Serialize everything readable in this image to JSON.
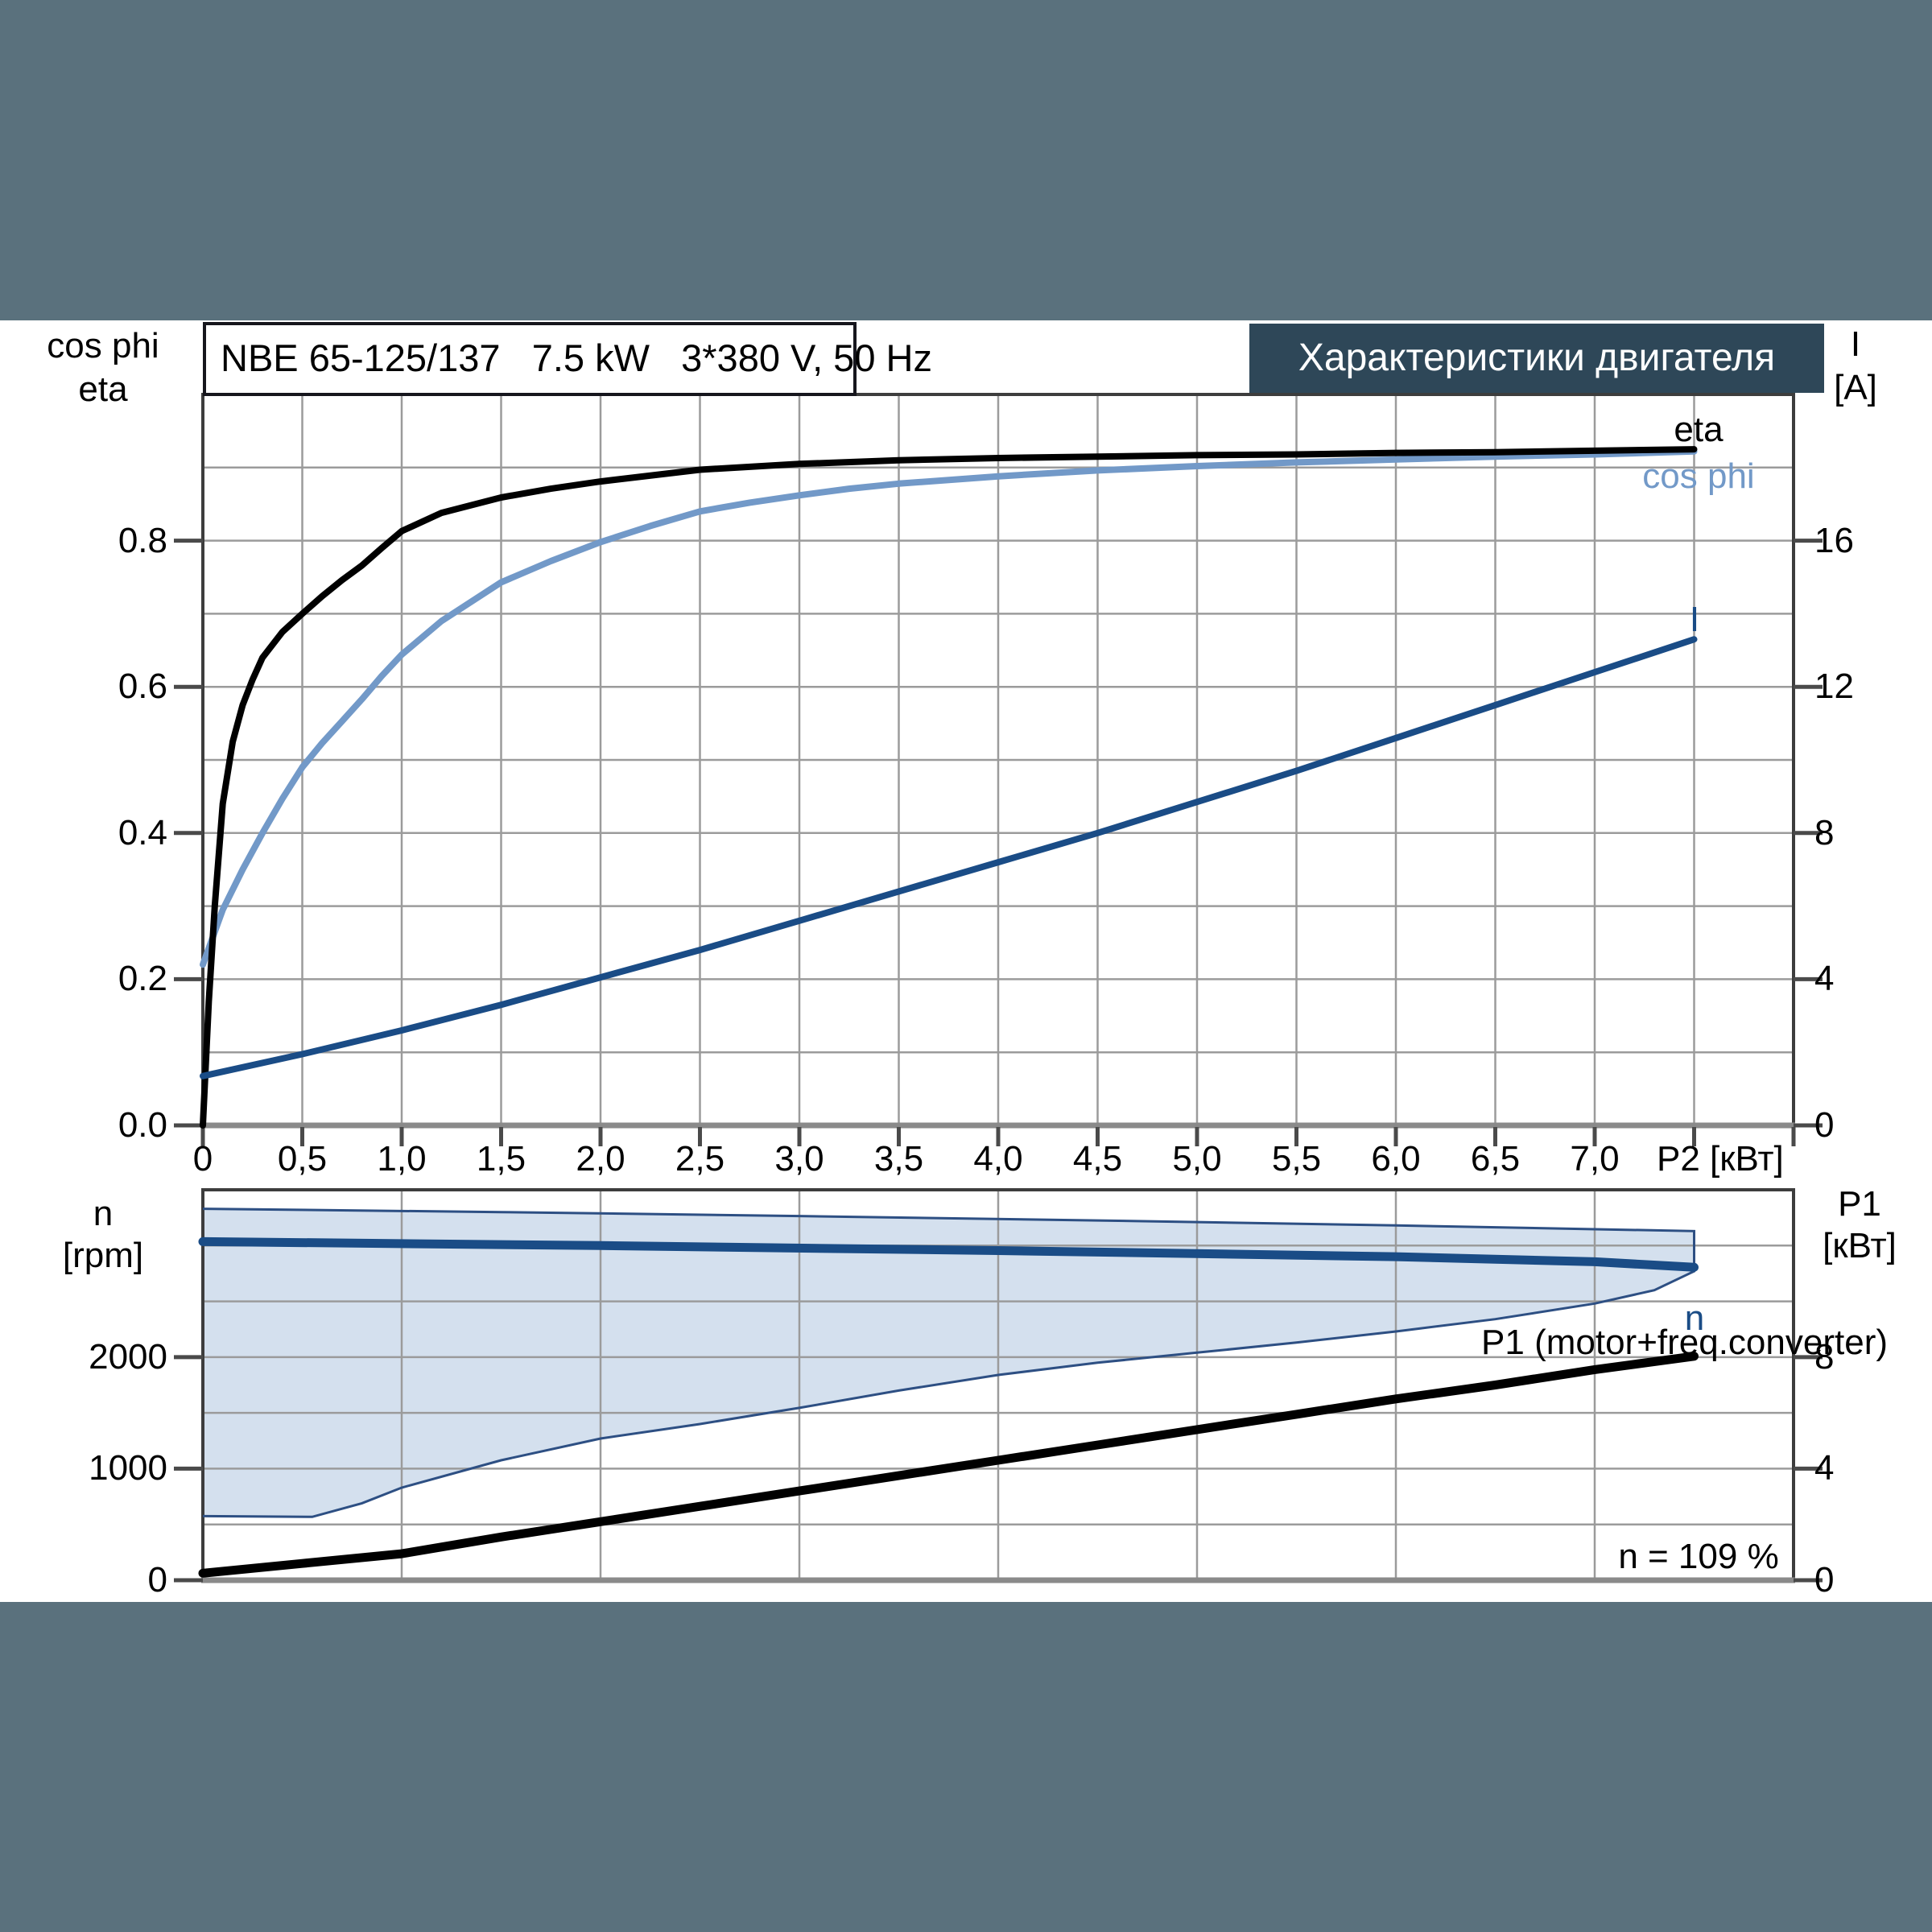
{
  "page": {
    "background": "#5a717d",
    "panel_background": "#ffffff",
    "grid_color": "#9b9b9b",
    "border_color": "#3d3d3d",
    "baseline_color": "#8a8a8a"
  },
  "top_chart": {
    "title": "NBE 65-125/137   7.5 kW   3*380 V, 50 Hz",
    "banner": "Характеристики двигателя",
    "banner_bg": "#2e4758",
    "axis_left_line1": "cos phi",
    "axis_left_line2": "eta",
    "axis_right_line1": "I",
    "axis_right_line2": "[A]",
    "x_axis_label": "P2 [кВт]",
    "eta_curve_label": "eta",
    "cos_phi_curve_label": "cos phi",
    "current_curve_label": "I"
  },
  "bottom_chart": {
    "axis_left_line1": "n",
    "axis_left_line2": "[rpm]",
    "axis_right_line1": "P1",
    "axis_right_line2": "[кВт]",
    "n_curve_label": "n",
    "p1_curve_label": "P1 (motor+freq.converter)",
    "annotation": "n = 109 %"
  },
  "chart_data": [
    {
      "id": "motor-efficiency-chart",
      "type": "line",
      "title": "NBE 65-125/137 7.5 kW 3*380 V, 50 Hz",
      "xlabel": "P2 [кВт]",
      "x_range": [
        0,
        8
      ],
      "x_grid_step": 0.5,
      "x_ticks": [
        {
          "v": 0,
          "label": "0"
        },
        {
          "v": 0.5,
          "label": "0,5"
        },
        {
          "v": 1,
          "label": "1,0"
        },
        {
          "v": 1.5,
          "label": "1,5"
        },
        {
          "v": 2,
          "label": "2,0"
        },
        {
          "v": 2.5,
          "label": "2,5"
        },
        {
          "v": 3,
          "label": "3,0"
        },
        {
          "v": 3.5,
          "label": "3,5"
        },
        {
          "v": 4,
          "label": "4,0"
        },
        {
          "v": 4.5,
          "label": "4,5"
        },
        {
          "v": 5,
          "label": "5,0"
        },
        {
          "v": 5.5,
          "label": "5,5"
        },
        {
          "v": 6,
          "label": "6,0"
        },
        {
          "v": 6.5,
          "label": "6,5"
        },
        {
          "v": 7,
          "label": "7,0"
        }
      ],
      "y_left": {
        "label": "cos phi / eta",
        "range": [
          0,
          1.0
        ],
        "grid_step": 0.1,
        "ticks": [
          {
            "v": 0,
            "label": "0.0"
          },
          {
            "v": 0.2,
            "label": "0.2"
          },
          {
            "v": 0.4,
            "label": "0.4"
          },
          {
            "v": 0.6,
            "label": "0.6"
          },
          {
            "v": 0.8,
            "label": "0.8"
          }
        ]
      },
      "y_right": {
        "label": "I [A]",
        "range": [
          0,
          20
        ],
        "ticks": [
          {
            "v": 0,
            "label": "0"
          },
          {
            "v": 4,
            "label": "4"
          },
          {
            "v": 8,
            "label": "8"
          },
          {
            "v": 12,
            "label": "12"
          },
          {
            "v": 16,
            "label": "16"
          }
        ]
      },
      "series": [
        {
          "name": "cos phi",
          "axis": "left",
          "color": "#7299c8",
          "width": 8,
          "points": [
            [
              0,
              0.22
            ],
            [
              0.1,
              0.295
            ],
            [
              0.2,
              0.35
            ],
            [
              0.3,
              0.4
            ],
            [
              0.4,
              0.447
            ],
            [
              0.5,
              0.49
            ],
            [
              0.6,
              0.523
            ],
            [
              0.7,
              0.553
            ],
            [
              0.8,
              0.583
            ],
            [
              0.9,
              0.615
            ],
            [
              1.0,
              0.644
            ],
            [
              1.2,
              0.69
            ],
            [
              1.5,
              0.743
            ],
            [
              1.75,
              0.772
            ],
            [
              2.0,
              0.798
            ],
            [
              2.25,
              0.82
            ],
            [
              2.5,
              0.84
            ],
            [
              2.75,
              0.852
            ],
            [
              3.0,
              0.862
            ],
            [
              3.25,
              0.871
            ],
            [
              3.5,
              0.878
            ],
            [
              4.0,
              0.888
            ],
            [
              4.5,
              0.896
            ],
            [
              5.0,
              0.902
            ],
            [
              5.5,
              0.907
            ],
            [
              6.0,
              0.911
            ],
            [
              6.5,
              0.915
            ],
            [
              7.0,
              0.918
            ],
            [
              7.5,
              0.922
            ]
          ]
        },
        {
          "name": "eta",
          "axis": "left",
          "color": "#000000",
          "width": 8,
          "points": [
            [
              0,
              0
            ],
            [
              0.03,
              0.17
            ],
            [
              0.06,
              0.3
            ],
            [
              0.1,
              0.44
            ],
            [
              0.15,
              0.525
            ],
            [
              0.2,
              0.575
            ],
            [
              0.25,
              0.61
            ],
            [
              0.3,
              0.64
            ],
            [
              0.4,
              0.675
            ],
            [
              0.5,
              0.7
            ],
            [
              0.6,
              0.724
            ],
            [
              0.7,
              0.746
            ],
            [
              0.8,
              0.766
            ],
            [
              0.9,
              0.79
            ],
            [
              1.0,
              0.813
            ],
            [
              1.2,
              0.838
            ],
            [
              1.5,
              0.859
            ],
            [
              1.75,
              0.871
            ],
            [
              2.0,
              0.881
            ],
            [
              2.5,
              0.897
            ],
            [
              3.0,
              0.905
            ],
            [
              3.5,
              0.91
            ],
            [
              4.0,
              0.913
            ],
            [
              4.5,
              0.915
            ],
            [
              5.0,
              0.917
            ],
            [
              5.5,
              0.918
            ],
            [
              6.0,
              0.92
            ],
            [
              6.5,
              0.921
            ],
            [
              7.0,
              0.923
            ],
            [
              7.5,
              0.925
            ]
          ]
        },
        {
          "name": "I",
          "axis": "right",
          "color": "#1a4c86",
          "width": 8,
          "points": [
            [
              0,
              1.35
            ],
            [
              0.5,
              1.95
            ],
            [
              1,
              2.6
            ],
            [
              1.5,
              3.3
            ],
            [
              2,
              4.05
            ],
            [
              2.5,
              4.8
            ],
            [
              3,
              5.6
            ],
            [
              3.5,
              6.4
            ],
            [
              4,
              7.2
            ],
            [
              4.5,
              8.0
            ],
            [
              5,
              8.85
            ],
            [
              5.5,
              9.7
            ],
            [
              6,
              10.6
            ],
            [
              6.5,
              11.5
            ],
            [
              7,
              12.4
            ],
            [
              7.5,
              13.3
            ]
          ]
        }
      ]
    },
    {
      "id": "speed-power-chart",
      "type": "line",
      "xlabel": "P2 [кВт]",
      "x_range": [
        0,
        8
      ],
      "x_grid_step": 1,
      "x_ticks": [],
      "y_left": {
        "label": "n [rpm]",
        "range": [
          0,
          3500
        ],
        "grid_step": 500,
        "ticks": [
          {
            "v": 0,
            "label": "0"
          },
          {
            "v": 1000,
            "label": "1000"
          },
          {
            "v": 2000,
            "label": "2000"
          }
        ]
      },
      "y_right": {
        "label": "P1 [кВт]",
        "range": [
          0,
          14
        ],
        "ticks": [
          {
            "v": 0,
            "label": "0"
          },
          {
            "v": 4,
            "label": "4"
          },
          {
            "v": 8,
            "label": "8"
          }
        ]
      },
      "envelope": {
        "name": "speed operating range",
        "fill": "#d4e0ee",
        "stroke": "#2d4f83",
        "upper": [
          [
            0,
            3330
          ],
          [
            1.5,
            3300
          ],
          [
            3,
            3265
          ],
          [
            4.5,
            3225
          ],
          [
            6,
            3180
          ],
          [
            7.5,
            3130
          ]
        ],
        "lower": [
          [
            0,
            575
          ],
          [
            0.55,
            568
          ],
          [
            0.8,
            690
          ],
          [
            1,
            830
          ],
          [
            1.5,
            1075
          ],
          [
            2,
            1270
          ],
          [
            2.5,
            1400
          ],
          [
            3,
            1545
          ],
          [
            3.5,
            1700
          ],
          [
            4,
            1840
          ],
          [
            4.5,
            1950
          ],
          [
            5,
            2040
          ],
          [
            5.5,
            2130
          ],
          [
            6,
            2230
          ],
          [
            6.5,
            2340
          ],
          [
            7,
            2480
          ],
          [
            7.3,
            2600
          ],
          [
            7.5,
            2770
          ]
        ]
      },
      "series": [
        {
          "name": "n",
          "axis": "left",
          "color": "#1a4c86",
          "width": 11,
          "points": [
            [
              0,
              3035
            ],
            [
              2,
              3000
            ],
            [
              4,
              2955
            ],
            [
              6,
              2900
            ],
            [
              7,
              2855
            ],
            [
              7.5,
              2805
            ]
          ]
        },
        {
          "name": "P1 (motor+freq.converter)",
          "axis": "right",
          "color": "#000000",
          "width": 11,
          "points": [
            [
              0,
              0.25
            ],
            [
              0.5,
              0.6
            ],
            [
              1,
              0.95
            ],
            [
              1.5,
              1.55
            ],
            [
              2,
              2.1
            ],
            [
              2.5,
              2.65
            ],
            [
              3,
              3.2
            ],
            [
              3.5,
              3.75
            ],
            [
              4,
              4.3
            ],
            [
              4.5,
              4.85
            ],
            [
              5,
              5.4
            ],
            [
              5.5,
              5.95
            ],
            [
              6,
              6.5
            ],
            [
              6.5,
              7.0
            ],
            [
              7,
              7.55
            ],
            [
              7.5,
              8.03
            ]
          ]
        }
      ],
      "annotation": "n = 109 %"
    }
  ]
}
